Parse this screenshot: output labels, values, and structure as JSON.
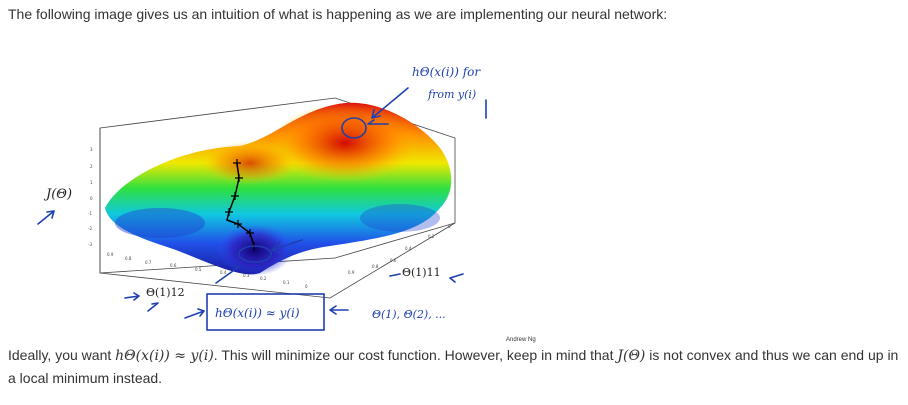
{
  "intro_text": "The following image gives us an intuition of what is happening as we are implementing our neural network:",
  "figure": {
    "credit": "Andrew Ng",
    "j_label": "J(Θ)",
    "theta12_label": "Θ(1)12",
    "theta11_label": "Θ(1)11",
    "note_top_line1": "hΘ(x(i)) for",
    "note_top_line2": "from y(i)",
    "note_bottom": "hΘ(x(i)) ≈ y(i)",
    "note_params": "Θ(1), Θ(2), ...",
    "ticks_left": [
      "3",
      "2",
      "1",
      "0",
      "-1",
      "-2",
      "-3"
    ],
    "ticks_front": [
      "0.9",
      "0.8",
      "0.7",
      "0.6",
      "0.5",
      "0.4",
      "0.3",
      "0.2",
      "0.1",
      "0"
    ],
    "ticks_right": [
      "0.9",
      "0.8",
      "0.6",
      "0.4",
      "0.2",
      "0"
    ]
  },
  "paragraph": {
    "p1": "Ideally, you want ",
    "m1": "hΘ(x(i)) ≈ y(i)",
    "p2": ". This will minimize our cost function. However, keep in mind that ",
    "m2": "J(Θ)",
    "p3": " is not convex and thus we can end up in a local minimum instead."
  },
  "colors": {
    "ink": "#1f3fb0",
    "text": "#333333"
  }
}
